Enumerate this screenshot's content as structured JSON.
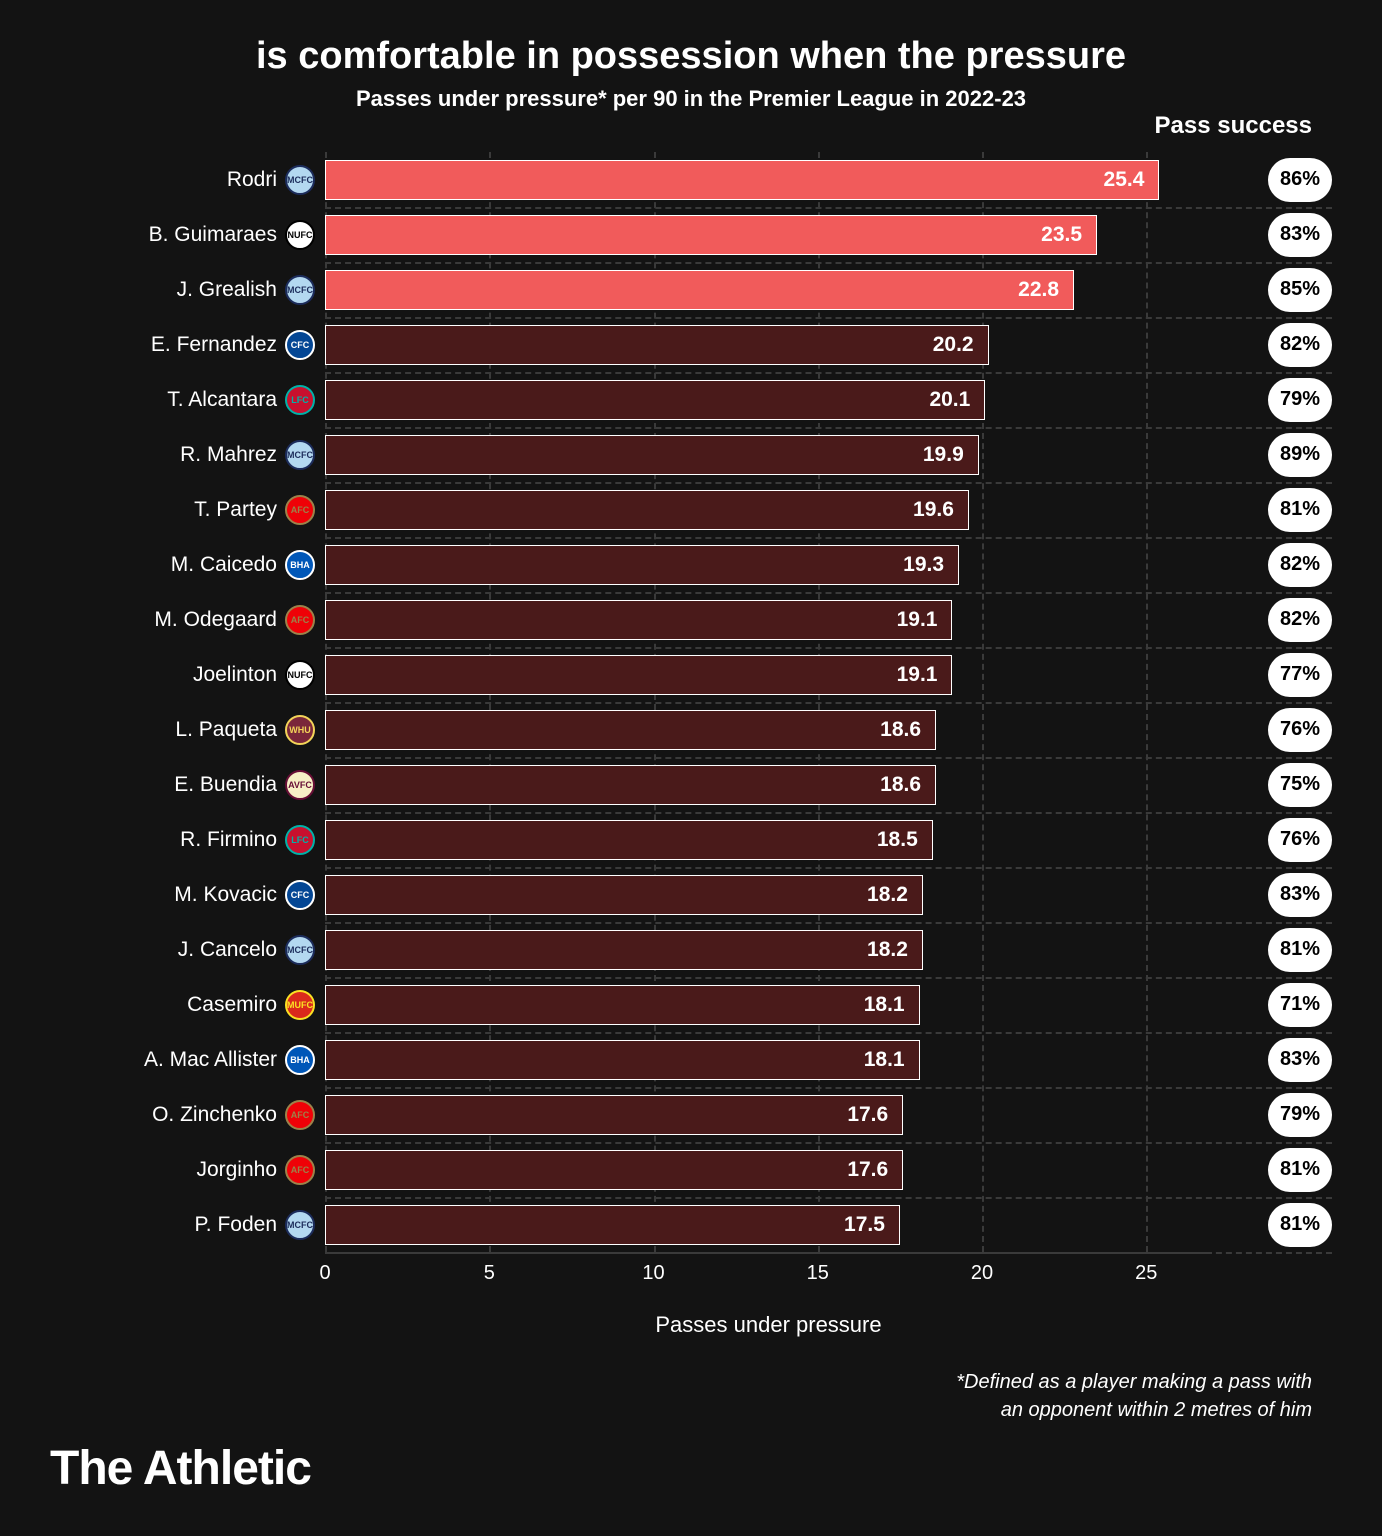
{
  "title": "is comfortable in possession when the pressure",
  "subtitle": "Passes under pressure* per 90 in the Premier League in 2022-23",
  "pass_success_header": "Pass success",
  "x_axis_label": "Passes under pressure",
  "footnote_line1": "*Defined as a player making a pass with",
  "footnote_line2": "an opponent within 2 metres of him",
  "brand": "The Athletic",
  "chart": {
    "type": "bar",
    "xlim": [
      0,
      27
    ],
    "xticks": [
      0,
      5,
      10,
      15,
      20,
      25
    ],
    "bar_border_color": "#ffffff",
    "grid_color": "#3a3a3a",
    "background": "#131313",
    "highlight_color": "#f15b5b",
    "normal_color": "#4a1a1a",
    "pill_bg": "#ffffff",
    "pill_text": "#000000",
    "label_fontsize": 21,
    "value_fontsize": 21
  },
  "players": [
    {
      "name": "Rodri",
      "value": 25.4,
      "success": "86%",
      "highlight": true,
      "badge_bg": "#b3d8f0",
      "badge_ring": "#1c2c5b",
      "badge_txt": "MCFC"
    },
    {
      "name": "B. Guimaraes",
      "value": 23.5,
      "success": "83%",
      "highlight": true,
      "badge_bg": "#ffffff",
      "badge_ring": "#000000",
      "badge_txt": "NUFC"
    },
    {
      "name": "J. Grealish",
      "value": 22.8,
      "success": "85%",
      "highlight": true,
      "badge_bg": "#b3d8f0",
      "badge_ring": "#1c2c5b",
      "badge_txt": "MCFC"
    },
    {
      "name": "E. Fernandez",
      "value": 20.2,
      "success": "82%",
      "highlight": false,
      "badge_bg": "#034694",
      "badge_ring": "#ffffff",
      "badge_txt": "CFC"
    },
    {
      "name": "T. Alcantara",
      "value": 20.1,
      "success": "79%",
      "highlight": false,
      "badge_bg": "#c8102e",
      "badge_ring": "#00b2a9",
      "badge_txt": "LFC"
    },
    {
      "name": "R. Mahrez",
      "value": 19.9,
      "success": "89%",
      "highlight": false,
      "badge_bg": "#b3d8f0",
      "badge_ring": "#1c2c5b",
      "badge_txt": "MCFC"
    },
    {
      "name": "T. Partey",
      "value": 19.6,
      "success": "81%",
      "highlight": false,
      "badge_bg": "#ef0107",
      "badge_ring": "#9c824a",
      "badge_txt": "AFC"
    },
    {
      "name": "M. Caicedo",
      "value": 19.3,
      "success": "82%",
      "highlight": false,
      "badge_bg": "#0057b8",
      "badge_ring": "#ffffff",
      "badge_txt": "BHA"
    },
    {
      "name": "M. Odegaard",
      "value": 19.1,
      "success": "82%",
      "highlight": false,
      "badge_bg": "#ef0107",
      "badge_ring": "#9c824a",
      "badge_txt": "AFC"
    },
    {
      "name": "Joelinton",
      "value": 19.1,
      "success": "77%",
      "highlight": false,
      "badge_bg": "#ffffff",
      "badge_ring": "#000000",
      "badge_txt": "NUFC"
    },
    {
      "name": "L. Paqueta",
      "value": 18.6,
      "success": "76%",
      "highlight": false,
      "badge_bg": "#7a263a",
      "badge_ring": "#f3d459",
      "badge_txt": "WHU"
    },
    {
      "name": "E. Buendia",
      "value": 18.6,
      "success": "75%",
      "highlight": false,
      "badge_bg": "#f8f0c6",
      "badge_ring": "#670e36",
      "badge_txt": "AVFC"
    },
    {
      "name": "R. Firmino",
      "value": 18.5,
      "success": "76%",
      "highlight": false,
      "badge_bg": "#c8102e",
      "badge_ring": "#00b2a9",
      "badge_txt": "LFC"
    },
    {
      "name": "M. Kovacic",
      "value": 18.2,
      "success": "83%",
      "highlight": false,
      "badge_bg": "#034694",
      "badge_ring": "#ffffff",
      "badge_txt": "CFC"
    },
    {
      "name": "J. Cancelo",
      "value": 18.2,
      "success": "81%",
      "highlight": false,
      "badge_bg": "#b3d8f0",
      "badge_ring": "#1c2c5b",
      "badge_txt": "MCFC"
    },
    {
      "name": "Casemiro",
      "value": 18.1,
      "success": "71%",
      "highlight": false,
      "badge_bg": "#da291c",
      "badge_ring": "#fbe122",
      "badge_txt": "MUFC"
    },
    {
      "name": "A. Mac Allister",
      "value": 18.1,
      "success": "83%",
      "highlight": false,
      "badge_bg": "#0057b8",
      "badge_ring": "#ffffff",
      "badge_txt": "BHA"
    },
    {
      "name": "O. Zinchenko",
      "value": 17.6,
      "success": "79%",
      "highlight": false,
      "badge_bg": "#ef0107",
      "badge_ring": "#9c824a",
      "badge_txt": "AFC"
    },
    {
      "name": "Jorginho",
      "value": 17.6,
      "success": "81%",
      "highlight": false,
      "badge_bg": "#ef0107",
      "badge_ring": "#9c824a",
      "badge_txt": "AFC"
    },
    {
      "name": "P. Foden",
      "value": 17.5,
      "success": "81%",
      "highlight": false,
      "badge_bg": "#b3d8f0",
      "badge_ring": "#1c2c5b",
      "badge_txt": "MCFC"
    }
  ]
}
